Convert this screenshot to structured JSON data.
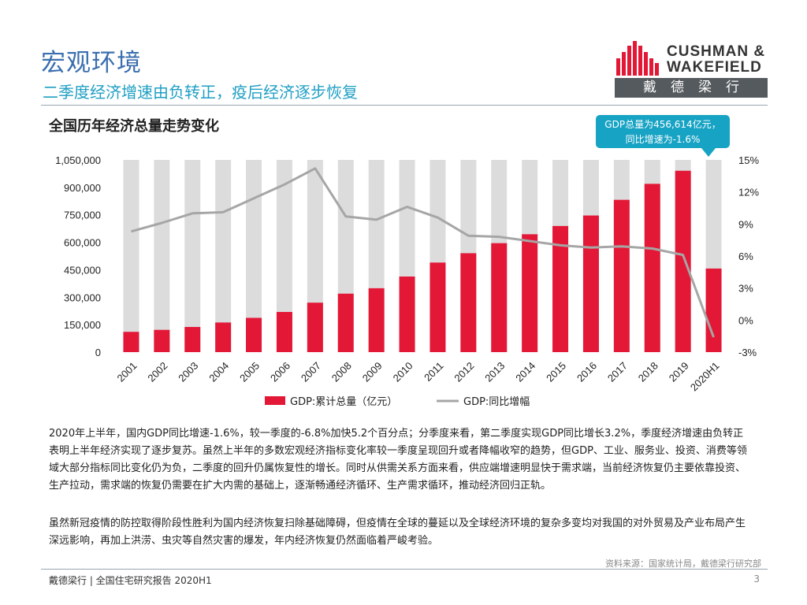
{
  "page": {
    "title": "宏观环境",
    "subtitle": "二季度经济增速由负转正，疫后经济逐步恢复",
    "logo_line1": "CUSHMAN &",
    "logo_line2": "WAKEFIELD",
    "logo_cn": "戴德梁行",
    "brand_red": "#e31837",
    "brand_gray": "#555a5e",
    "accent_blue": "#3b6faf",
    "accent_teal": "#17a3c4"
  },
  "callout": {
    "line1": "GDP总量为456,614亿元，",
    "line2": "同比增速为-1.6%"
  },
  "chart_data": {
    "type": "bar+line",
    "title": "全国历年经济总量走势变化",
    "categories": [
      "2001",
      "2002",
      "2003",
      "2004",
      "2005",
      "2006",
      "2007",
      "2008",
      "2009",
      "2010",
      "2011",
      "2012",
      "2013",
      "2014",
      "2015",
      "2016",
      "2017",
      "2018",
      "2019",
      "2020H1"
    ],
    "series": [
      {
        "name": "GDP:累计总量（亿元）",
        "type": "bar",
        "axis": "left",
        "color": "#e31837",
        "values": [
          110863,
          121717,
          137422,
          161840,
          187319,
          219439,
          270232,
          319516,
          349081,
          413030,
          489301,
          540367,
          595244,
          643974,
          689052,
          746395,
          832036,
          919281,
          990865,
          456614
        ]
      },
      {
        "name": "GDP:同比增幅",
        "type": "line",
        "axis": "right",
        "color": "#a6a6a6",
        "values": [
          8.3,
          9.1,
          10.0,
          10.1,
          11.4,
          12.7,
          14.2,
          9.7,
          9.4,
          10.6,
          9.6,
          7.9,
          7.8,
          7.4,
          7.0,
          6.8,
          6.9,
          6.7,
          6.1,
          -1.6
        ]
      }
    ],
    "background_bar_color": "#dcdcdc",
    "ylim_left": [
      0,
      1050000
    ],
    "yticks_left": [
      "0",
      "150,000",
      "300,000",
      "450,000",
      "600,000",
      "750,000",
      "900,000",
      "1,050,000"
    ],
    "ylim_right": [
      -3,
      15
    ],
    "yticks_right": [
      "-3%",
      "0%",
      "3%",
      "6%",
      "9%",
      "12%",
      "15%"
    ],
    "legend_position": "bottom",
    "grid": false
  },
  "text": {
    "p1": "2020年上半年，国内GDP同比增速-1.6%，较一季度的-6.8%加快5.2个百分点；分季度来看，第二季度实现GDP同比增长3.2%，季度经济增速由负转正表明上半年经济实现了逐步复苏。虽然上半年的多数宏观经济指标变化率较一季度呈现回升或者降幅收窄的趋势，但GDP、工业、服务业、投资、消费等领域大部分指标同比变化仍为负，二季度的回升仍属恢复性的增长。同时从供需关系方面来看，供应端增速明显快于需求端，当前经济恢复仍主要依靠投资、生产拉动，需求端的恢复仍需要在扩大内需的基础上，逐渐畅通经济循环、生产需求循环，推动经济回归正轨。",
    "p2": "虽然新冠疫情的防控取得阶段性胜利为国内经济恢复扫除基础障碍，但疫情在全球的蔓延以及全球经济环境的复杂多变均对我国的对外贸易及产业布局产生深远影响，再加上洪涝、虫灾等自然灾害的爆发，年内经济恢复仍然面临着严峻考验。",
    "source": "资料来源：国家统计局，戴德梁行研究部"
  },
  "footer": {
    "left": "戴德梁行 | 全国住宅研究报告 2020H1",
    "page": "3"
  }
}
